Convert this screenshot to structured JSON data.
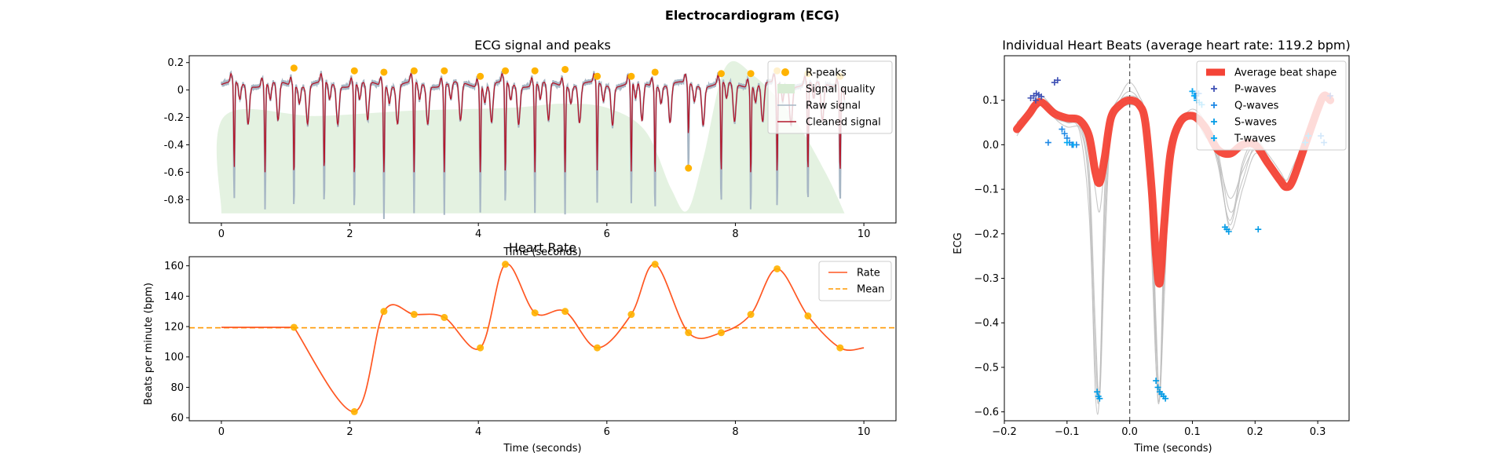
{
  "figure": {
    "suptitle": "Electrocardiogram (ECG)",
    "colors": {
      "raw": "#a6b6c4",
      "cleaned": "#b2182b",
      "quality": "#d8ecd4",
      "rpeak": "#ffb300",
      "rate": "#ff5722",
      "mean": "#ff9800",
      "avg_beat": "#f44336",
      "individual": "#bdbdbd",
      "p": "#3f51b5",
      "q": "#1e88e5",
      "s": "#039be5",
      "t": "#03a9f4"
    }
  },
  "chart_data": [
    {
      "type": "line",
      "title": "ECG signal and peaks",
      "xlabel": "Time (seconds)",
      "ylabel": "",
      "xlim": [
        -0.5,
        10.5
      ],
      "ylim": [
        -0.97,
        0.25
      ],
      "xticks": [
        0,
        2,
        4,
        6,
        8,
        10
      ],
      "yticks": [
        -0.8,
        -0.6,
        -0.4,
        -0.2,
        0.0,
        0.2
      ],
      "legend": [
        "R-peaks",
        "Signal quality",
        "Raw signal",
        "Cleaned signal"
      ],
      "legend_position": "top-right",
      "r_peaks": {
        "t": [
          1.13,
          2.07,
          2.53,
          3.0,
          3.47,
          4.03,
          4.42,
          4.88,
          5.35,
          5.85,
          6.38,
          6.75,
          7.27,
          7.78,
          8.24,
          8.65,
          9.13,
          9.63
        ],
        "y": [
          0.16,
          0.14,
          0.13,
          0.14,
          0.14,
          0.1,
          0.14,
          0.14,
          0.15,
          0.1,
          0.1,
          0.13,
          -0.57,
          0.12,
          0.12,
          0.14,
          0.12,
          0.1
        ]
      },
      "troughs": {
        "t": [
          0.2,
          0.68,
          1.13,
          1.6,
          2.07,
          2.53,
          3.0,
          3.47,
          4.03,
          4.42,
          4.88,
          5.35,
          5.85,
          6.38,
          6.75,
          7.27,
          7.78,
          8.24,
          8.65,
          9.13,
          9.63
        ],
        "depth": [
          -0.82,
          -0.84,
          -0.85,
          -0.85,
          -0.87,
          -0.89,
          -0.88,
          -0.87,
          -0.87,
          -0.87,
          -0.87,
          -0.87,
          -0.83,
          -0.84,
          -0.84,
          -0.57,
          -0.85,
          -0.85,
          -0.85,
          -0.84,
          -0.82
        ]
      },
      "signal_quality": {
        "t": [
          0,
          0.05,
          1.5,
          3.0,
          4.5,
          5.3,
          6.0,
          6.6,
          7.0,
          7.25,
          7.5,
          7.85,
          8.3,
          8.9,
          9.4,
          9.7
        ],
        "y": [
          -0.9,
          -0.19,
          -0.19,
          -0.15,
          -0.13,
          -0.1,
          -0.13,
          -0.3,
          -0.72,
          -0.88,
          -0.5,
          0.17,
          0.1,
          -0.2,
          -0.6,
          -0.9
        ]
      }
    },
    {
      "type": "line",
      "title": "Heart Rate",
      "xlabel": "Time (seconds)",
      "ylabel": "Beats per minute (bpm)",
      "xlim": [
        -0.5,
        10.5
      ],
      "ylim": [
        58,
        166
      ],
      "xticks": [
        0,
        2,
        4,
        6,
        8,
        10
      ],
      "yticks": [
        60,
        80,
        100,
        120,
        140,
        160
      ],
      "legend": [
        "Rate",
        "Mean"
      ],
      "legend_position": "top-right",
      "mean": 119.2,
      "x": [
        0,
        1.13,
        2.07,
        2.53,
        3.0,
        3.47,
        4.03,
        4.42,
        4.88,
        5.35,
        5.85,
        6.38,
        6.75,
        7.27,
        7.78,
        8.24,
        8.65,
        9.13,
        9.63,
        10.0
      ],
      "y": [
        119.5,
        119.5,
        64,
        130,
        128,
        126,
        106,
        161,
        129,
        130,
        106,
        128,
        161,
        116,
        116,
        128,
        158,
        127,
        106,
        106
      ],
      "markers_from_index": 1,
      "markers_to_index": 18
    },
    {
      "type": "line",
      "title": "Individual Heart Beats (average heart rate: 119.2 bpm)",
      "xlabel": "Time (seconds)",
      "ylabel": "ECG",
      "xlim": [
        -0.2,
        0.35
      ],
      "ylim": [
        -0.62,
        0.2
      ],
      "xticks": [
        -0.2,
        -0.1,
        0.0,
        0.1,
        0.2,
        0.3
      ],
      "xtick_labels": [
        "−0.2",
        "−0.1",
        "0.0",
        "0.1",
        "0.2",
        "0.3"
      ],
      "yticks": [
        -0.6,
        -0.5,
        -0.4,
        -0.3,
        -0.2,
        -0.1,
        0.0,
        0.1
      ],
      "ytick_labels": [
        "−0.6",
        "−0.5",
        "−0.4",
        "−0.3",
        "−0.2",
        "−0.1",
        "0.0",
        "0.1"
      ],
      "legend": [
        "Average beat shape",
        "P-waves",
        "Q-waves",
        "S-waves",
        "T-waves"
      ],
      "legend_position": "top-right",
      "average_beat": {
        "x": [
          -0.18,
          -0.16,
          -0.15,
          -0.14,
          -0.12,
          -0.1,
          -0.08,
          -0.065,
          -0.055,
          -0.048,
          -0.04,
          -0.03,
          -0.015,
          0.0,
          0.015,
          0.025,
          0.035,
          0.042,
          0.048,
          0.055,
          0.065,
          0.08,
          0.1,
          0.12,
          0.14,
          0.16,
          0.18,
          0.2,
          0.22,
          0.24,
          0.25,
          0.26,
          0.28,
          0.3,
          0.31,
          0.32
        ],
        "y": [
          0.035,
          0.07,
          0.09,
          0.095,
          0.07,
          0.06,
          0.055,
          0.02,
          -0.06,
          -0.085,
          -0.03,
          0.06,
          0.09,
          0.1,
          0.09,
          0.05,
          -0.1,
          -0.25,
          -0.31,
          -0.18,
          -0.02,
          0.05,
          0.065,
          0.04,
          -0.01,
          -0.02,
          0.0,
          0.0,
          -0.04,
          -0.08,
          -0.095,
          -0.08,
          0.0,
          0.08,
          0.11,
          0.1
        ]
      },
      "individual_beats": [
        {
          "y": [
            0.03,
            0.06,
            0.08,
            0.09,
            0.06,
            0.05,
            0.04,
            -0.1,
            -0.55,
            -0.56,
            -0.2,
            0.05,
            0.09,
            0.1,
            0.09,
            0.04,
            -0.2,
            -0.45,
            -0.55,
            -0.3,
            -0.02,
            0.04,
            0.06,
            0.03,
            -0.03,
            -0.18,
            -0.05,
            0.0,
            -0.03,
            -0.07,
            -0.09,
            -0.06,
            0.0,
            0.08,
            0.1,
            0.1
          ]
        },
        {
          "y": [
            0.02,
            0.07,
            0.1,
            0.11,
            0.08,
            0.06,
            0.05,
            -0.05,
            -0.4,
            -0.57,
            -0.25,
            0.04,
            0.1,
            0.12,
            0.1,
            0.05,
            -0.1,
            -0.4,
            -0.56,
            -0.25,
            0.0,
            0.06,
            0.07,
            0.02,
            -0.02,
            -0.19,
            -0.1,
            -0.02,
            -0.05,
            -0.09,
            -0.1,
            -0.07,
            0.01,
            0.09,
            0.11,
            0.11
          ]
        },
        {
          "y": [
            0.05,
            0.08,
            0.1,
            0.1,
            0.07,
            0.05,
            0.03,
            -0.15,
            -0.5,
            -0.55,
            -0.1,
            0.06,
            0.11,
            0.14,
            0.11,
            0.06,
            -0.15,
            -0.5,
            -0.56,
            -0.2,
            0.01,
            0.05,
            0.08,
            0.05,
            -0.04,
            -0.17,
            -0.04,
            0.01,
            -0.02,
            -0.06,
            -0.08,
            -0.05,
            0.01,
            0.07,
            0.1,
            0.1
          ]
        },
        {
          "y": [
            0.04,
            0.06,
            0.09,
            0.1,
            0.06,
            0.04,
            0.04,
            0.0,
            -0.1,
            -0.15,
            -0.05,
            0.04,
            0.08,
            0.09,
            0.08,
            0.03,
            -0.25,
            -0.5,
            -0.57,
            -0.35,
            -0.05,
            0.05,
            0.07,
            0.04,
            -0.01,
            -0.15,
            -0.08,
            0.0,
            -0.03,
            -0.08,
            -0.1,
            -0.07,
            0.0,
            0.08,
            0.1,
            0.1
          ]
        },
        {
          "y": [
            0.03,
            0.07,
            0.09,
            0.1,
            0.07,
            0.06,
            0.05,
            -0.08,
            -0.45,
            -0.55,
            -0.15,
            0.06,
            0.1,
            0.11,
            0.1,
            0.05,
            -0.12,
            -0.42,
            -0.55,
            -0.28,
            -0.01,
            0.05,
            0.06,
            0.03,
            -0.03,
            -0.12,
            -0.06,
            -0.01,
            -0.04,
            -0.08,
            -0.09,
            -0.06,
            0.0,
            0.08,
            0.1,
            0.1
          ]
        }
      ],
      "p_waves": {
        "x": [
          -0.158,
          -0.153,
          -0.149,
          -0.145,
          -0.141,
          -0.15,
          -0.12,
          -0.115,
          0.32
        ],
        "y": [
          0.105,
          0.11,
          0.115,
          0.112,
          0.108,
          0.1,
          0.14,
          0.145,
          0.11
        ]
      },
      "q_waves": {
        "x": [
          -0.13,
          -0.108,
          -0.104,
          -0.1,
          -0.096,
          -0.092,
          -0.085,
          0.1,
          0.105,
          0.11,
          0.305,
          0.31
        ],
        "y": [
          0.005,
          0.035,
          0.025,
          0.015,
          0.005,
          0.0,
          0.0,
          0.12,
          0.11,
          0.115,
          0.02,
          0.005
        ]
      },
      "s_waves": {
        "x": [
          -0.052,
          -0.05,
          -0.048,
          0.042,
          0.045,
          0.048,
          0.051,
          0.054,
          0.057,
          0.152,
          0.155,
          0.158,
          0.205
        ],
        "y": [
          -0.555,
          -0.565,
          -0.57,
          -0.53,
          -0.545,
          -0.555,
          -0.56,
          -0.565,
          -0.57,
          -0.185,
          -0.19,
          -0.195,
          -0.19
        ]
      },
      "t_waves": {
        "x": [
          -0.1,
          -0.09,
          0.1,
          0.103,
          0.107,
          0.111,
          0.115,
          0.28,
          0.285
        ],
        "y": [
          0.005,
          0.0,
          0.12,
          0.11,
          0.1,
          0.095,
          0.09,
          0.005,
          0.02
        ]
      }
    }
  ]
}
